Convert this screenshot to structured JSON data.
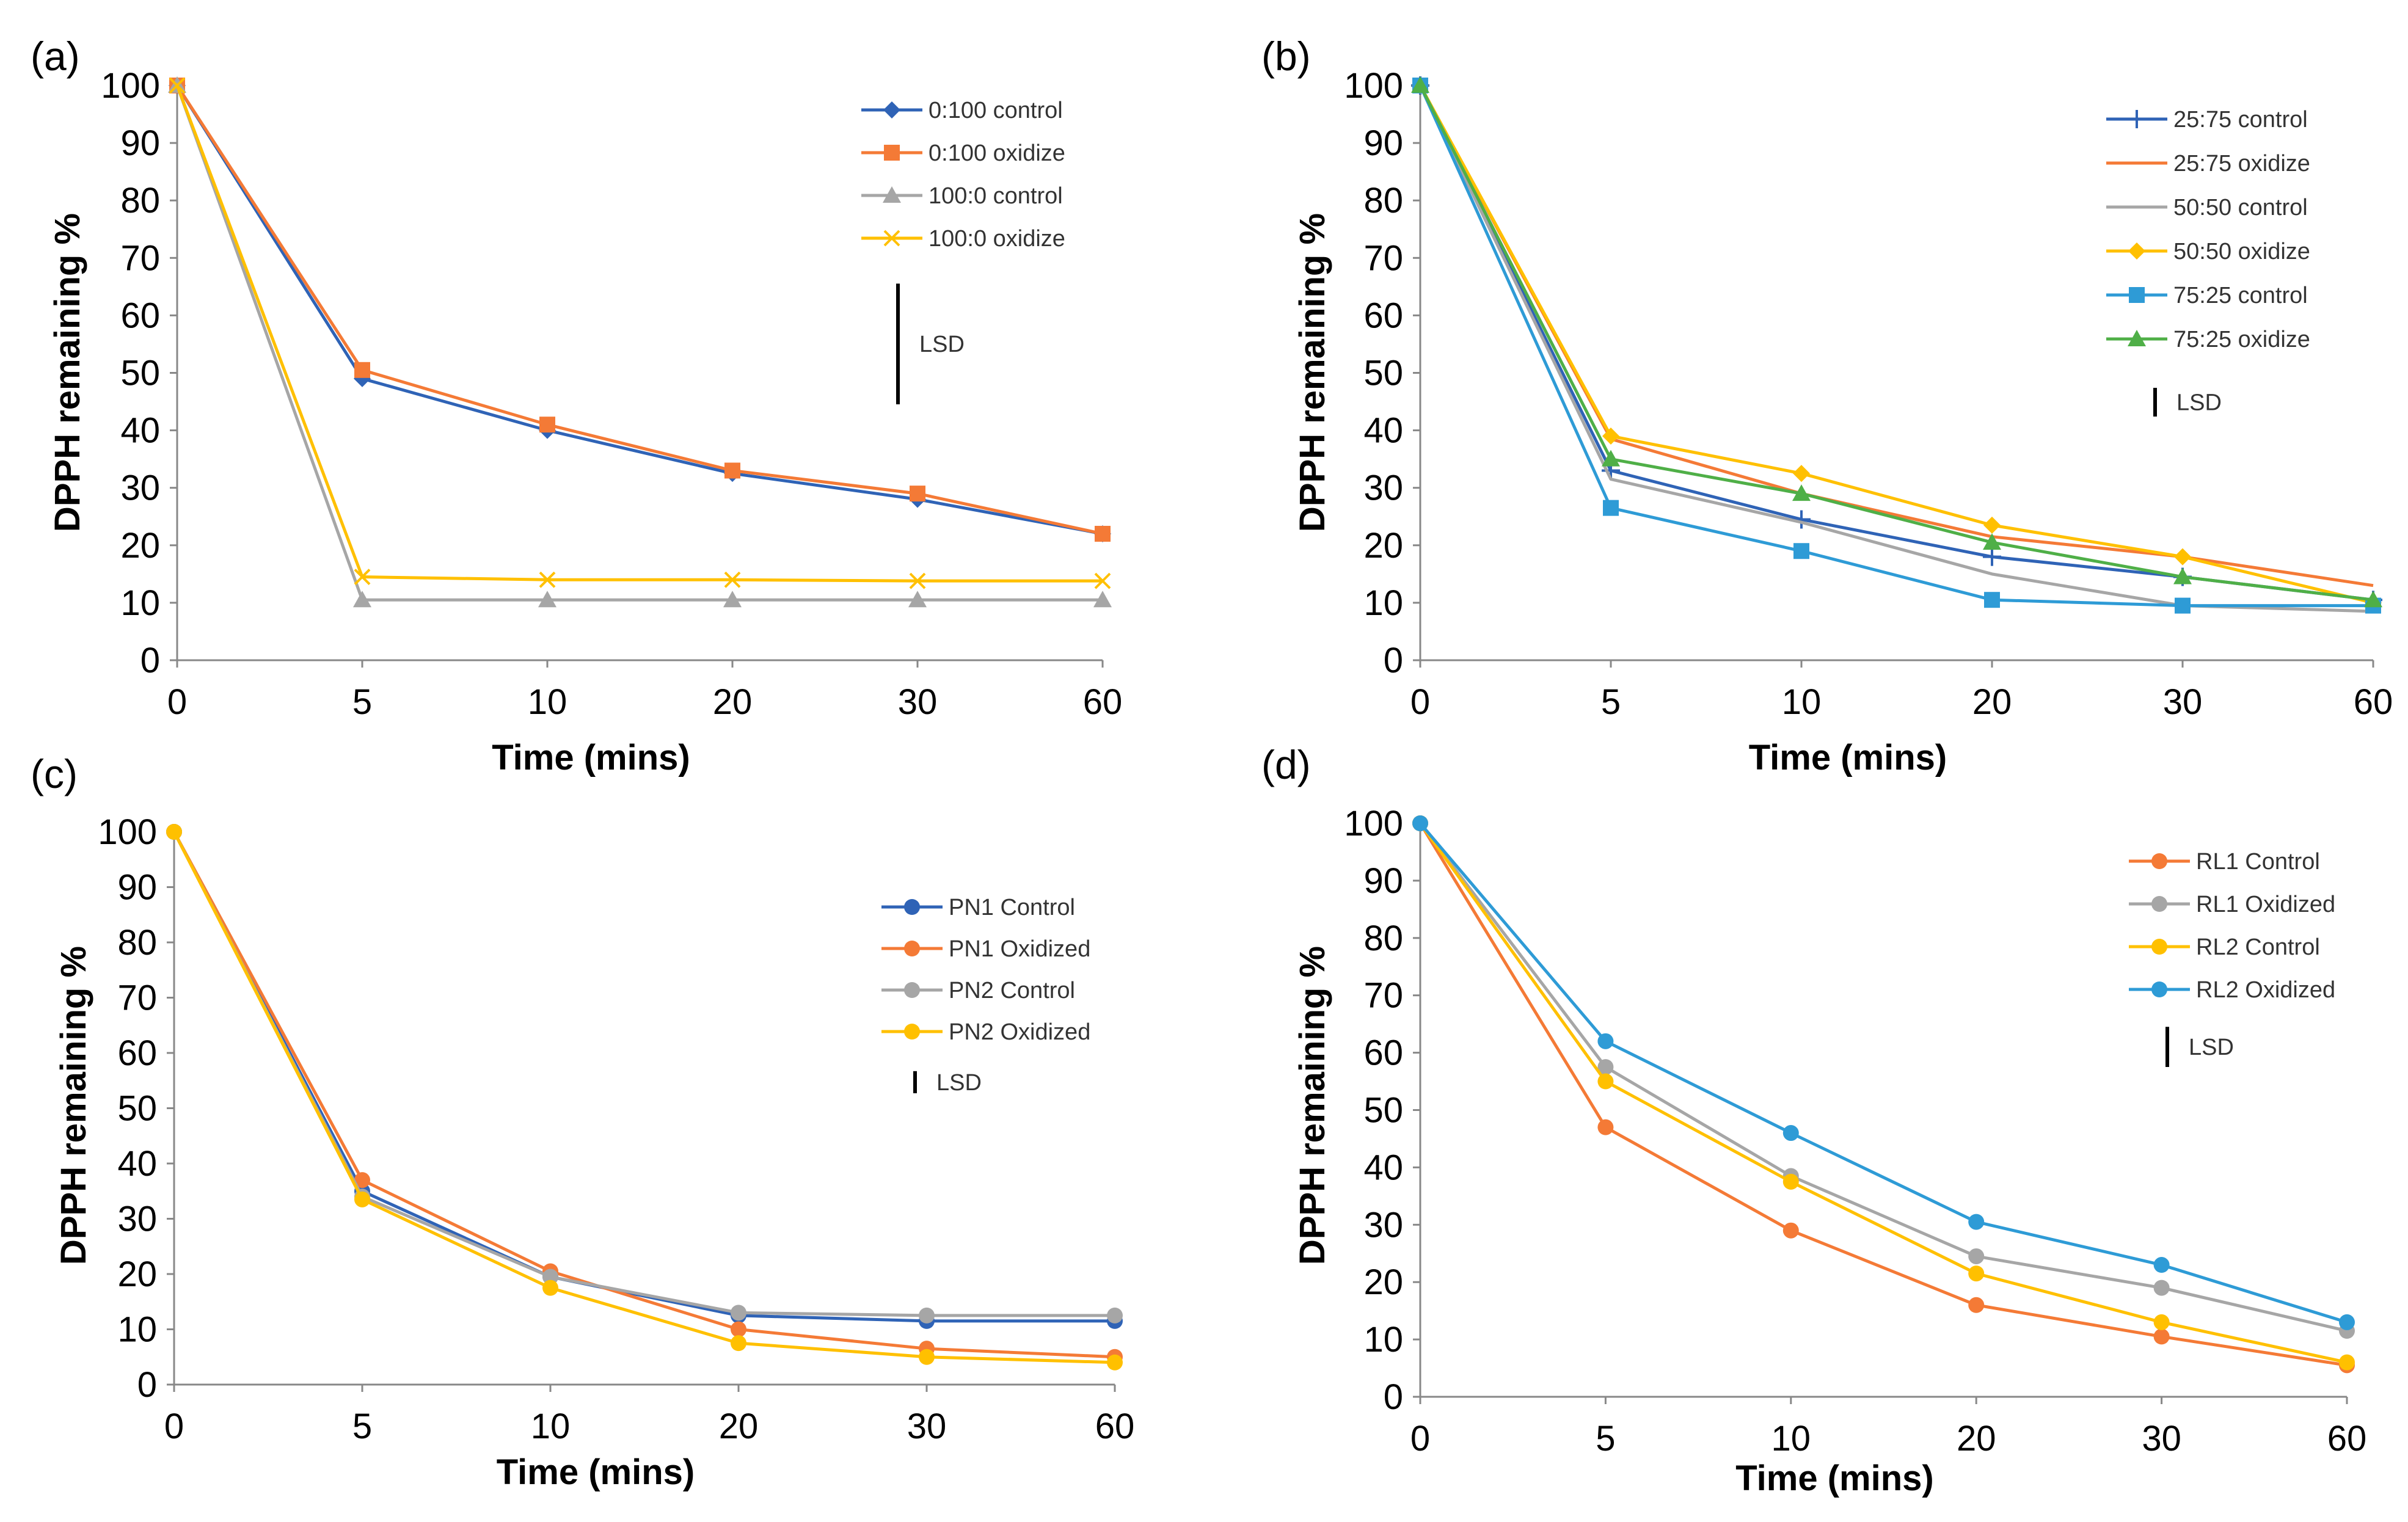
{
  "colors": {
    "blue": "#2F63B6",
    "orange": "#F47A36",
    "gray": "#A6A6A6",
    "yellow": "#FFC000",
    "lightblue": "#2E9BD6",
    "green": "#4FAF47"
  },
  "chart_data": [
    {
      "panel_label": "(a)",
      "type": "line",
      "xlabel": "Time (mins)",
      "ylabel": "DPPH remaining %",
      "categories": [
        "0",
        "5",
        "10",
        "20",
        "30",
        "60"
      ],
      "yticks": [
        "0",
        "10",
        "20",
        "30",
        "40",
        "50",
        "60",
        "70",
        "80",
        "90",
        "100"
      ],
      "ylim": [
        0,
        100
      ],
      "lsd_label": "LSD",
      "lsd_value": 21,
      "series": [
        {
          "name": "0:100 control",
          "color": "#2F63B6",
          "marker": "diamond",
          "values": [
            100,
            49,
            40,
            32.5,
            28,
            22
          ]
        },
        {
          "name": "0:100 oxidize",
          "color": "#F47A36",
          "marker": "square",
          "values": [
            100,
            50.5,
            41,
            33,
            29,
            22
          ]
        },
        {
          "name": "100:0 control",
          "color": "#A6A6A6",
          "marker": "triangle",
          "values": [
            100,
            10.5,
            10.5,
            10.5,
            10.5,
            10.5
          ]
        },
        {
          "name": "100:0 oxidize",
          "color": "#FFC000",
          "marker": "x",
          "values": [
            100,
            14.5,
            14,
            14,
            13.8,
            13.8
          ]
        }
      ]
    },
    {
      "panel_label": "(b)",
      "type": "line",
      "xlabel": "Time (mins)",
      "ylabel": "DPPH remaining %",
      "categories": [
        "0",
        "5",
        "10",
        "20",
        "30",
        "60"
      ],
      "yticks": [
        "0",
        "10",
        "20",
        "30",
        "40",
        "50",
        "60",
        "70",
        "80",
        "90",
        "100"
      ],
      "ylim": [
        0,
        100
      ],
      "lsd_label": "LSD",
      "lsd_value": 5,
      "series": [
        {
          "name": "25:75 control",
          "color": "#2F63B6",
          "marker": "plus",
          "values": [
            100,
            33,
            24.5,
            18,
            14.5,
            10.5
          ]
        },
        {
          "name": "25:75 oxidize",
          "color": "#F47A36",
          "marker": "none",
          "values": [
            100,
            38.5,
            29,
            21.5,
            18,
            13
          ]
        },
        {
          "name": "50:50 control",
          "color": "#A6A6A6",
          "marker": "none",
          "values": [
            100,
            31.5,
            24,
            15,
            9.5,
            8.5
          ]
        },
        {
          "name": "50:50 oxidize",
          "color": "#FFC000",
          "marker": "diamond",
          "values": [
            100,
            39,
            32.5,
            23.5,
            18,
            10
          ]
        },
        {
          "name": "75:25 control",
          "color": "#2E9BD6",
          "marker": "square",
          "values": [
            100,
            26.5,
            19,
            10.5,
            9.5,
            9.5
          ]
        },
        {
          "name": "75:25 oxidize",
          "color": "#4FAF47",
          "marker": "triangle",
          "values": [
            100,
            35,
            29,
            20.5,
            14.5,
            10.5
          ]
        }
      ]
    },
    {
      "panel_label": "(c)",
      "type": "line",
      "xlabel": "Time (mins)",
      "ylabel": "DPPH remaining %",
      "categories": [
        "0",
        "5",
        "10",
        "20",
        "30",
        "60"
      ],
      "yticks": [
        "0",
        "10",
        "20",
        "30",
        "40",
        "50",
        "60",
        "70",
        "80",
        "90",
        "100"
      ],
      "ylim": [
        0,
        100
      ],
      "lsd_label": "LSD",
      "lsd_value": 4,
      "series": [
        {
          "name": "PN1 Control",
          "color": "#2F63B6",
          "marker": "circle",
          "values": [
            100,
            35,
            19.5,
            12.5,
            11.5,
            11.5
          ]
        },
        {
          "name": "PN1 Oxidized",
          "color": "#F47A36",
          "marker": "circle",
          "values": [
            100,
            37,
            20.5,
            10,
            6.5,
            5
          ]
        },
        {
          "name": "PN2 Control",
          "color": "#A6A6A6",
          "marker": "circle",
          "values": [
            100,
            34,
            19.5,
            13,
            12.5,
            12.5
          ]
        },
        {
          "name": "PN2 Oxidized",
          "color": "#FFC000",
          "marker": "circle",
          "values": [
            100,
            33.5,
            17.5,
            7.5,
            5,
            4
          ]
        }
      ]
    },
    {
      "panel_label": "(d)",
      "type": "line",
      "xlabel": "Time (mins)",
      "ylabel": "DPPH remaining %",
      "categories": [
        "0",
        "5",
        "10",
        "20",
        "30",
        "60"
      ],
      "yticks": [
        "0",
        "10",
        "20",
        "30",
        "40",
        "50",
        "60",
        "70",
        "80",
        "90",
        "100"
      ],
      "ylim": [
        0,
        100
      ],
      "lsd_label": "LSD",
      "lsd_value": 7,
      "series": [
        {
          "name": "RL1 Control",
          "color": "#F47A36",
          "marker": "circle",
          "values": [
            100,
            47,
            29,
            16,
            10.5,
            5.5
          ]
        },
        {
          "name": "RL1 Oxidized",
          "color": "#A6A6A6",
          "marker": "circle",
          "values": [
            100,
            57.5,
            38.5,
            24.5,
            19,
            11.5
          ]
        },
        {
          "name": "RL2 Control",
          "color": "#FFC000",
          "marker": "circle",
          "values": [
            100,
            55,
            37.5,
            21.5,
            13,
            6
          ]
        },
        {
          "name": "RL2 Oxidized",
          "color": "#2E9BD6",
          "marker": "circle",
          "values": [
            100,
            62,
            46,
            30.5,
            23,
            13
          ]
        }
      ]
    }
  ]
}
